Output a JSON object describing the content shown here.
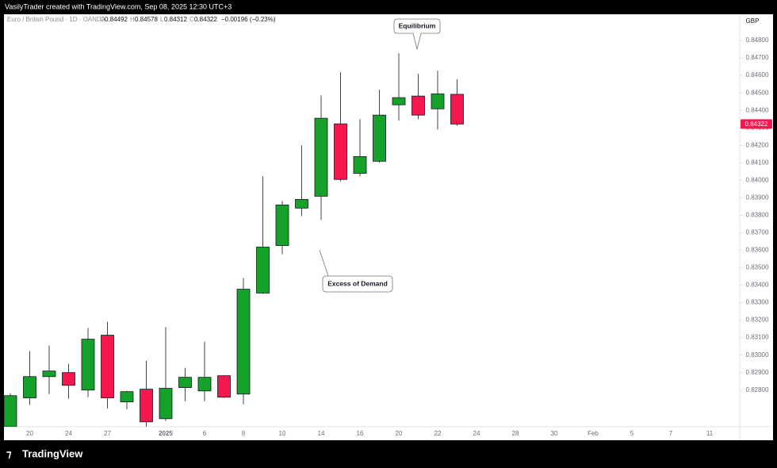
{
  "header": {
    "author_line": "VasilyTrader created with TradingView.com, Sep 08, 2025 12:30 UTC+3",
    "symbol": "Euro / British Pound · 1D · OANDA",
    "o": "O",
    "h": "H",
    "l": "L",
    "c": "C",
    "change": "−0.00196 (−0.23%)"
  },
  "footer": {
    "brand": "TradingView"
  },
  "chart_data": {
    "type": "candlestick",
    "currency": "GBP",
    "up_color": "#16a22a",
    "down_color": "#f5174e",
    "annotations": [
      "Equilibrium",
      "Excess of Demand"
    ],
    "categories": [
      null,
      "20",
      null,
      "24",
      null,
      "27",
      null,
      null,
      "2025",
      null,
      "6",
      null,
      "8",
      null,
      "10",
      null,
      "14",
      null,
      "16",
      null,
      "20",
      null,
      "22",
      null,
      "24",
      null,
      "28",
      null,
      "30",
      null,
      "Feb",
      null,
      "5",
      null,
      "7",
      null,
      "11"
    ],
    "open": [
      0.8259,
      0.82755,
      0.82877,
      0.829,
      0.828,
      0.83114,
      0.82732,
      0.82805,
      0.82636,
      0.82814,
      0.82795,
      0.82882,
      0.82777,
      0.83355,
      0.83627,
      0.83841,
      0.83909,
      0.84323,
      0.8404,
      0.84109,
      0.84432,
      0.84482,
      0.84409,
      0.84492,
      null,
      null,
      null,
      null,
      null,
      null,
      null,
      null,
      null,
      null,
      null,
      null,
      null
    ],
    "high": [
      0.82782,
      0.83023,
      0.83055,
      0.8295,
      0.83155,
      0.83191,
      0.82795,
      0.82968,
      0.8316,
      0.82927,
      0.83077,
      0.82885,
      0.83441,
      0.84023,
      0.83882,
      0.842,
      0.84486,
      0.84618,
      0.8435,
      0.84518,
      0.84727,
      0.84609,
      0.84627,
      0.84578,
      null,
      null,
      null,
      null,
      null,
      null,
      null,
      null,
      null,
      null,
      null,
      null,
      null
    ],
    "low": [
      0.8259,
      0.82714,
      0.82777,
      0.8275,
      0.82759,
      0.82695,
      0.8269,
      0.82586,
      0.82623,
      0.82736,
      0.82736,
      0.82755,
      0.82718,
      0.8335,
      0.83577,
      0.83795,
      0.83773,
      0.83995,
      0.84023,
      0.841,
      0.84341,
      0.8435,
      0.84291,
      0.84312,
      null,
      null,
      null,
      null,
      null,
      null,
      null,
      null,
      null,
      null,
      null,
      null,
      null
    ],
    "close": [
      0.82768,
      0.82877,
      0.82909,
      0.82827,
      0.83091,
      0.82755,
      0.82791,
      0.82618,
      0.8281,
      0.82873,
      0.82873,
      0.82759,
      0.83377,
      0.83618,
      0.83859,
      0.83891,
      0.84355,
      0.84005,
      0.84136,
      0.84373,
      0.84473,
      0.84373,
      0.84495,
      0.84322,
      null,
      null,
      null,
      null,
      null,
      null,
      null,
      null,
      null,
      null,
      null,
      null,
      null
    ],
    "ylim": [
      0.8259,
      0.8495
    ],
    "yticks": [
      {
        "value": 0.828,
        "label": "0.82800"
      },
      {
        "value": 0.829,
        "label": "0.82900"
      },
      {
        "value": 0.83,
        "label": "0.83000"
      },
      {
        "value": 0.831,
        "label": "0.83100"
      },
      {
        "value": 0.832,
        "label": "0.83200"
      },
      {
        "value": 0.833,
        "label": "0.83300"
      },
      {
        "value": 0.834,
        "label": "0.83400"
      },
      {
        "value": 0.835,
        "label": "0.83500"
      },
      {
        "value": 0.836,
        "label": "0.83600"
      },
      {
        "value": 0.837,
        "label": "0.83700"
      },
      {
        "value": 0.838,
        "label": "0.83800"
      },
      {
        "value": 0.839,
        "label": "0.83900"
      },
      {
        "value": 0.84,
        "label": "0.84000"
      },
      {
        "value": 0.841,
        "label": "0.84100"
      },
      {
        "value": 0.842,
        "label": "0.84200"
      },
      {
        "value": 0.843,
        "label": "0.84300"
      },
      {
        "value": 0.844,
        "label": "0.84400"
      },
      {
        "value": 0.845,
        "label": "0.84500"
      },
      {
        "value": 0.846,
        "label": "0.84600"
      },
      {
        "value": 0.847,
        "label": "0.84700"
      },
      {
        "value": 0.848,
        "label": "0.84800"
      }
    ],
    "grid": false
  }
}
